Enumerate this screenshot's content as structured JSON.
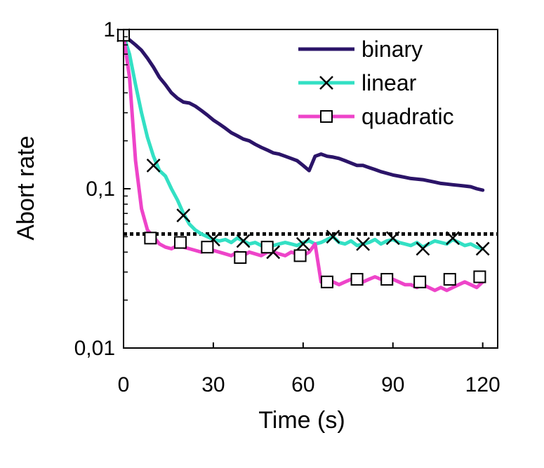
{
  "chart_data": {
    "type": "line",
    "xlabel": "Time (s)",
    "ylabel": "Abort rate",
    "xlim": [
      0,
      125
    ],
    "ylim": [
      0.01,
      1
    ],
    "y_scale": "log",
    "grid": false,
    "legend_position": "top-right",
    "x_ticks": [
      "0",
      "30",
      "60",
      "90",
      "120"
    ],
    "x_tick_values": [
      0,
      30,
      60,
      90,
      120
    ],
    "y_ticks": [
      "0,01",
      "0,1",
      "1"
    ],
    "y_tick_values": [
      0.01,
      0.1,
      1
    ],
    "reference_line": {
      "y": 0.052,
      "style": "dotted",
      "color": "#000000"
    },
    "series": [
      {
        "name": "binary",
        "color": "#2b1468",
        "marker": "none",
        "x": [
          0,
          2,
          4,
          6,
          8,
          10,
          12,
          14,
          16,
          18,
          20,
          22,
          24,
          26,
          28,
          30,
          32,
          34,
          36,
          38,
          40,
          42,
          44,
          46,
          48,
          50,
          52,
          54,
          56,
          58,
          60,
          62,
          64,
          66,
          68,
          70,
          72,
          74,
          76,
          78,
          80,
          82,
          84,
          86,
          88,
          90,
          92,
          94,
          96,
          98,
          100,
          102,
          104,
          106,
          108,
          110,
          112,
          114,
          116,
          118,
          120
        ],
        "y": [
          0.92,
          0.86,
          0.8,
          0.74,
          0.66,
          0.58,
          0.5,
          0.45,
          0.4,
          0.37,
          0.35,
          0.345,
          0.33,
          0.31,
          0.29,
          0.27,
          0.255,
          0.24,
          0.225,
          0.215,
          0.205,
          0.2,
          0.19,
          0.182,
          0.175,
          0.168,
          0.165,
          0.16,
          0.155,
          0.15,
          0.14,
          0.13,
          0.16,
          0.165,
          0.16,
          0.158,
          0.155,
          0.15,
          0.145,
          0.14,
          0.14,
          0.136,
          0.132,
          0.128,
          0.125,
          0.122,
          0.12,
          0.118,
          0.116,
          0.115,
          0.114,
          0.112,
          0.11,
          0.108,
          0.107,
          0.106,
          0.105,
          0.104,
          0.103,
          0.1,
          0.098
        ]
      },
      {
        "name": "linear",
        "color": "#33e0c4",
        "marker": "x",
        "x": [
          0,
          2,
          4,
          6,
          8,
          10,
          12,
          14,
          16,
          18,
          20,
          22,
          24,
          26,
          28,
          30,
          32,
          34,
          36,
          38,
          40,
          42,
          44,
          46,
          48,
          50,
          52,
          54,
          56,
          58,
          60,
          62,
          64,
          66,
          68,
          70,
          72,
          74,
          76,
          78,
          80,
          82,
          84,
          86,
          88,
          90,
          92,
          94,
          96,
          98,
          100,
          102,
          104,
          106,
          108,
          110,
          112,
          114,
          116,
          118,
          120
        ],
        "y": [
          0.92,
          0.7,
          0.45,
          0.3,
          0.21,
          0.16,
          0.13,
          0.12,
          0.1,
          0.085,
          0.07,
          0.06,
          0.055,
          0.052,
          0.05,
          0.048,
          0.047,
          0.048,
          0.046,
          0.049,
          0.047,
          0.045,
          0.046,
          0.044,
          0.043,
          0.044,
          0.045,
          0.046,
          0.045,
          0.044,
          0.046,
          0.047,
          0.045,
          0.046,
          0.048,
          0.05,
          0.046,
          0.045,
          0.047,
          0.044,
          0.045,
          0.046,
          0.048,
          0.045,
          0.047,
          0.048,
          0.046,
          0.045,
          0.044,
          0.046,
          0.043,
          0.045,
          0.047,
          0.046,
          0.045,
          0.048,
          0.046,
          0.044,
          0.045,
          0.043,
          0.042
        ],
        "marker_x": [
          0,
          10,
          20,
          30,
          40,
          50,
          60,
          70,
          80,
          90,
          100,
          110,
          120
        ],
        "marker_y": [
          0.92,
          0.14,
          0.068,
          0.048,
          0.047,
          0.04,
          0.045,
          0.05,
          0.045,
          0.049,
          0.042,
          0.049,
          0.042
        ]
      },
      {
        "name": "quadratic",
        "color": "#ee44c9",
        "marker": "square",
        "x": [
          0,
          2,
          4,
          6,
          8,
          10,
          12,
          14,
          16,
          18,
          20,
          22,
          24,
          26,
          28,
          30,
          32,
          34,
          36,
          38,
          40,
          42,
          44,
          46,
          48,
          50,
          52,
          54,
          56,
          58,
          60,
          62,
          64,
          66,
          68,
          70,
          72,
          74,
          76,
          78,
          80,
          82,
          84,
          86,
          88,
          90,
          92,
          94,
          96,
          98,
          100,
          102,
          104,
          106,
          108,
          110,
          112,
          114,
          116,
          118,
          120
        ],
        "y": [
          0.92,
          0.5,
          0.15,
          0.075,
          0.055,
          0.05,
          0.045,
          0.043,
          0.042,
          0.044,
          0.043,
          0.042,
          0.041,
          0.04,
          0.042,
          0.041,
          0.04,
          0.039,
          0.038,
          0.04,
          0.038,
          0.04,
          0.039,
          0.038,
          0.04,
          0.04,
          0.039,
          0.038,
          0.04,
          0.039,
          0.038,
          0.04,
          0.045,
          0.026,
          0.025,
          0.026,
          0.025,
          0.026,
          0.027,
          0.026,
          0.026,
          0.027,
          0.028,
          0.027,
          0.026,
          0.027,
          0.026,
          0.025,
          0.025,
          0.024,
          0.025,
          0.024,
          0.023,
          0.024,
          0.023,
          0.024,
          0.025,
          0.026,
          0.025,
          0.024,
          0.026
        ],
        "marker_x": [
          0,
          9,
          19,
          28,
          39,
          48,
          59,
          68,
          78,
          88,
          99,
          109,
          119
        ],
        "marker_y": [
          0.92,
          0.049,
          0.046,
          0.043,
          0.037,
          0.043,
          0.038,
          0.026,
          0.027,
          0.027,
          0.026,
          0.027,
          0.028
        ]
      }
    ]
  }
}
